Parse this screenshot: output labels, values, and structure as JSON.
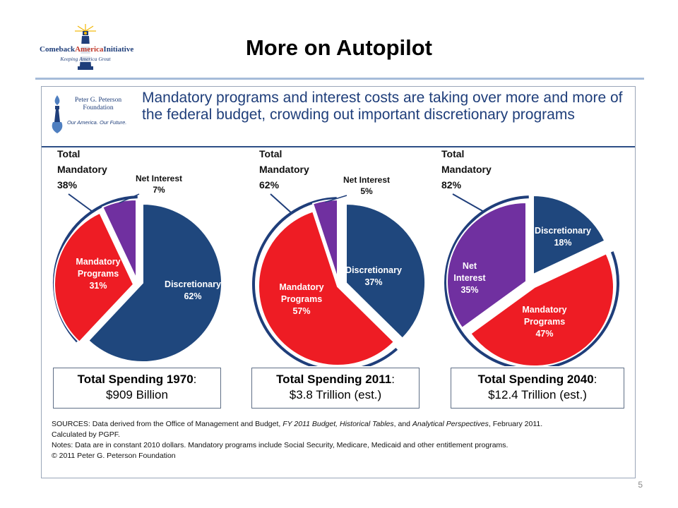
{
  "slide": {
    "title": "More on Autopilot",
    "page_number": "5",
    "logo": {
      "name_part1": "Comeback",
      "name_part2": "America",
      "name_part3": "Initiative",
      "tagline": "Keeping America Great"
    }
  },
  "figure": {
    "source_logo": {
      "name": "Peter G. Peterson Foundation",
      "slogan": "Our America. Our Future."
    },
    "headline": "Mandatory programs and interest costs are taking over more and more of the federal budget, crowding out important discretionary programs",
    "colors": {
      "discretionary": "#1f477d",
      "mandatory_programs": "#ee1c24",
      "net_interest": "#7030a0",
      "headline_text": "#1f3e7a",
      "rule": "#a6bcd9"
    }
  },
  "chart_data": [
    {
      "type": "pie",
      "year": "1970",
      "total_mandatory_label": "Total Mandatory 38%",
      "slices": [
        {
          "label": "Discretionary",
          "pct_label": "62%",
          "value": 62,
          "color_key": "discretionary"
        },
        {
          "label": "Mandatory Programs",
          "pct_label": "31%",
          "value": 31,
          "color_key": "mandatory_programs"
        },
        {
          "label": "Net Interest",
          "pct_label": "7%",
          "value": 7,
          "color_key": "net_interest"
        }
      ],
      "total_spending_label": "Total Spending 1970",
      "total_spending_value": "$909 Billion"
    },
    {
      "type": "pie",
      "year": "2011",
      "total_mandatory_label": "Total Mandatory 62%",
      "slices": [
        {
          "label": "Discretionary",
          "pct_label": "37%",
          "value": 37,
          "color_key": "discretionary"
        },
        {
          "label": "Mandatory Programs",
          "pct_label": "57%",
          "value": 57,
          "color_key": "mandatory_programs"
        },
        {
          "label": "Net Interest",
          "pct_label": "5%",
          "value": 5,
          "color_key": "net_interest"
        }
      ],
      "total_spending_label": "Total Spending 2011",
      "total_spending_value": "$3.8 Trillion (est.)"
    },
    {
      "type": "pie",
      "year": "2040",
      "total_mandatory_label": "Total Mandatory 82%",
      "slices": [
        {
          "label": "Discretionary",
          "pct_label": "18%",
          "value": 18,
          "color_key": "discretionary"
        },
        {
          "label": "Mandatory Programs",
          "pct_label": "47%",
          "value": 47,
          "color_key": "mandatory_programs"
        },
        {
          "label": "Net Interest",
          "pct_label": "35%",
          "value": 35,
          "color_key": "net_interest"
        }
      ],
      "total_spending_label": "Total Spending 2040",
      "total_spending_value": "$12.4 Trillion (est.)"
    }
  ],
  "notes": {
    "sources_prefix": "SOURCES: Data derived from the Office of Management and Budget, ",
    "sources_italic1": "FY 2011 Budget, Historical Tables",
    "sources_mid": ", and ",
    "sources_italic2": "Analytical Perspectives",
    "sources_suffix": ", February 2011.",
    "calculated": "Calculated by PGPF.",
    "notes_line": "Notes: Data are in constant 2010 dollars. Mandatory programs include Social Security, Medicare, Medicaid and other entitlement programs.",
    "copyright": "© 2011 Peter G. Peterson Foundation"
  }
}
